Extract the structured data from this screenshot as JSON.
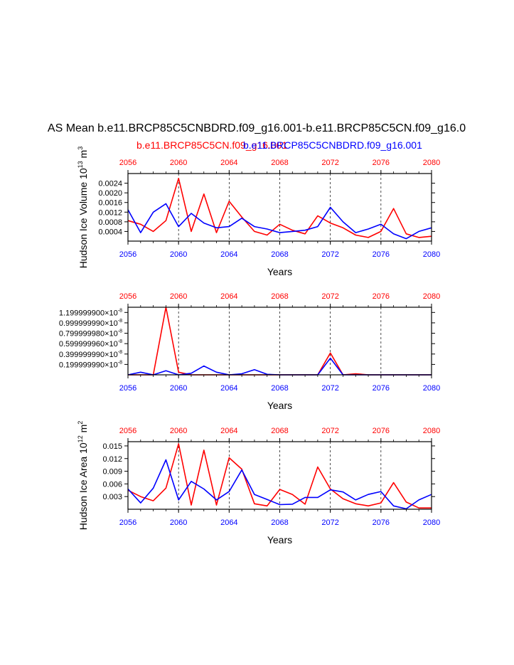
{
  "figure": {
    "main_title": "AS Mean b.e11.BRCP85C5CNBDRD.f09_g16.001-b.e11.BRCP85C5CN.f09_g16.0",
    "legend": {
      "red": "b.e11.BRCP85C5CN.f09_g16.001",
      "blue": "b.e11.BRCP85C5CNBDRD.f09_g16.001"
    },
    "colors": {
      "red": "#ff0000",
      "blue": "#0000ff",
      "axis": "#000000",
      "grid": "#000000"
    }
  },
  "chart_data": [
    {
      "type": "line",
      "ylabel": "Hudson Ice Volume 10",
      "ylabel_exp": "13",
      "ylabel_unit": " m",
      "ylabel_unit_exp": "3",
      "xlabel": "Years",
      "xlim": [
        2056,
        2080
      ],
      "ylim": [
        0,
        0.0028
      ],
      "yticks": [
        0.0004,
        0.0008,
        0.0012,
        0.0016,
        0.002,
        0.0024
      ],
      "ytick_labels": [
        "0.0004",
        "0.0008",
        "0.0012",
        "0.0016",
        "0.0020",
        "0.0024"
      ],
      "xticks": [
        2056,
        2060,
        2064,
        2068,
        2072,
        2076,
        2080
      ],
      "xtick_labels": [
        "2056",
        "2060",
        "2064",
        "2068",
        "2072",
        "2076",
        "2080"
      ],
      "grid_years": [
        2060,
        2064,
        2068,
        2072,
        2076
      ],
      "x": [
        2056,
        2057,
        2058,
        2059,
        2060,
        2061,
        2062,
        2063,
        2064,
        2065,
        2066,
        2067,
        2068,
        2069,
        2070,
        2071,
        2072,
        2073,
        2074,
        2075,
        2076,
        2077,
        2078,
        2079,
        2080
      ],
      "series": [
        {
          "name": "b.e11.BRCP85C5CN.f09_g16.001",
          "color": "#ff0000",
          "values": [
            0.00085,
            0.0007,
            0.0004,
            0.00085,
            0.0026,
            0.0004,
            0.00195,
            0.00035,
            0.00165,
            0.001,
            0.0004,
            0.00025,
            0.0007,
            0.00045,
            0.0003,
            0.00105,
            0.00075,
            0.00055,
            0.00025,
            0.00015,
            0.0004,
            0.00135,
            0.0003,
            0.00015,
            0.0002
          ]
        },
        {
          "name": "b.e11.BRCP85C5CNBDRD.f09_g16.001",
          "color": "#0000ff",
          "values": [
            0.0013,
            0.00035,
            0.0012,
            0.00155,
            0.0006,
            0.00115,
            0.00075,
            0.00055,
            0.0006,
            0.00095,
            0.0006,
            0.0005,
            0.00035,
            0.0004,
            0.00045,
            0.0006,
            0.0014,
            0.0008,
            0.00035,
            0.0005,
            0.0007,
            0.0003,
            0.0001,
            0.0004,
            0.00055
          ]
        }
      ]
    },
    {
      "type": "line",
      "ylabel": "",
      "xlabel": "Years",
      "xlim": [
        2056,
        2080
      ],
      "ylim": [
        0,
        1.3e-08
      ],
      "yticks": [
        2e-09,
        4e-09,
        6e-09,
        8e-09,
        1e-08,
        1.2e-08
      ],
      "ytick_labels": [
        "0.199999990",
        "0.399999990",
        "0.599999960",
        "0.799999980",
        "0.999999990",
        "1.199999900"
      ],
      "ytick_suffix": "×10",
      "ytick_exp": "-8",
      "xticks": [
        2056,
        2060,
        2064,
        2068,
        2072,
        2076,
        2080
      ],
      "xtick_labels": [
        "2056",
        "2060",
        "2064",
        "2068",
        "2072",
        "2076",
        "2080"
      ],
      "grid_years": [
        2060,
        2064,
        2068,
        2072,
        2076
      ],
      "x": [
        2056,
        2057,
        2058,
        2059,
        2060,
        2061,
        2062,
        2063,
        2064,
        2065,
        2066,
        2067,
        2068,
        2069,
        2070,
        2071,
        2072,
        2073,
        2074,
        2075,
        2076,
        2077,
        2078,
        2079,
        2080
      ],
      "series": [
        {
          "name": "b.e11.BRCP85C5CN.f09_g16.001",
          "color": "#ff0000",
          "values": [
            0,
            0,
            0,
            1.3e-08,
            5e-10,
            0,
            0,
            0,
            0,
            0,
            0,
            0,
            0,
            0,
            0,
            0,
            4.2e-09,
            0,
            2e-10,
            0,
            0,
            0,
            0,
            0,
            0
          ]
        },
        {
          "name": "b.e11.BRCP85C5CNBDRD.f09_g16.001",
          "color": "#0000ff",
          "values": [
            0,
            5e-10,
            0,
            8e-10,
            0,
            3e-10,
            1.7e-09,
            5e-10,
            0,
            2e-10,
            1e-09,
            1e-10,
            0,
            0,
            0,
            0,
            3.2e-09,
            0,
            0,
            0,
            0,
            0,
            0,
            0,
            0
          ]
        }
      ]
    },
    {
      "type": "line",
      "ylabel": "Hudson Ice Area 10",
      "ylabel_exp": "12",
      "ylabel_unit": " m",
      "ylabel_unit_exp": "2",
      "xlabel": "Years",
      "xlim": [
        2056,
        2080
      ],
      "ylim": [
        0,
        0.016
      ],
      "yticks": [
        0.003,
        0.006,
        0.009,
        0.012,
        0.015
      ],
      "ytick_labels": [
        "0.003",
        "0.006",
        "0.009",
        "0.012",
        "0.015"
      ],
      "xticks": [
        2056,
        2060,
        2064,
        2068,
        2072,
        2076,
        2080
      ],
      "xtick_labels": [
        "2056",
        "2060",
        "2064",
        "2068",
        "2072",
        "2076",
        "2080"
      ],
      "grid_years": [
        2060,
        2064,
        2068,
        2072,
        2076
      ],
      "x": [
        2056,
        2057,
        2058,
        2059,
        2060,
        2061,
        2062,
        2063,
        2064,
        2065,
        2066,
        2067,
        2068,
        2069,
        2070,
        2071,
        2072,
        2073,
        2074,
        2075,
        2076,
        2077,
        2078,
        2079,
        2080
      ],
      "series": [
        {
          "name": "b.e11.BRCP85C5CN.f09_g16.001",
          "color": "#ff0000",
          "values": [
            0.0045,
            0.003,
            0.002,
            0.005,
            0.0155,
            0.001,
            0.014,
            0.001,
            0.0122,
            0.0095,
            0.0013,
            0.0008,
            0.0047,
            0.0035,
            0.0012,
            0.01,
            0.0048,
            0.0025,
            0.0013,
            0.0008,
            0.0015,
            0.0063,
            0.0017,
            0.0003,
            0.0003
          ]
        },
        {
          "name": "b.e11.BRCP85C5CNBDRD.f09_g16.001",
          "color": "#0000ff",
          "values": [
            0.0048,
            0.0015,
            0.005,
            0.0117,
            0.0022,
            0.0066,
            0.0048,
            0.0022,
            0.0042,
            0.0093,
            0.0035,
            0.0023,
            0.0011,
            0.0012,
            0.0028,
            0.0028,
            0.0046,
            0.0041,
            0.0022,
            0.0035,
            0.0042,
            0.0008,
            0.0001,
            0.0022,
            0.0035
          ]
        }
      ]
    }
  ]
}
